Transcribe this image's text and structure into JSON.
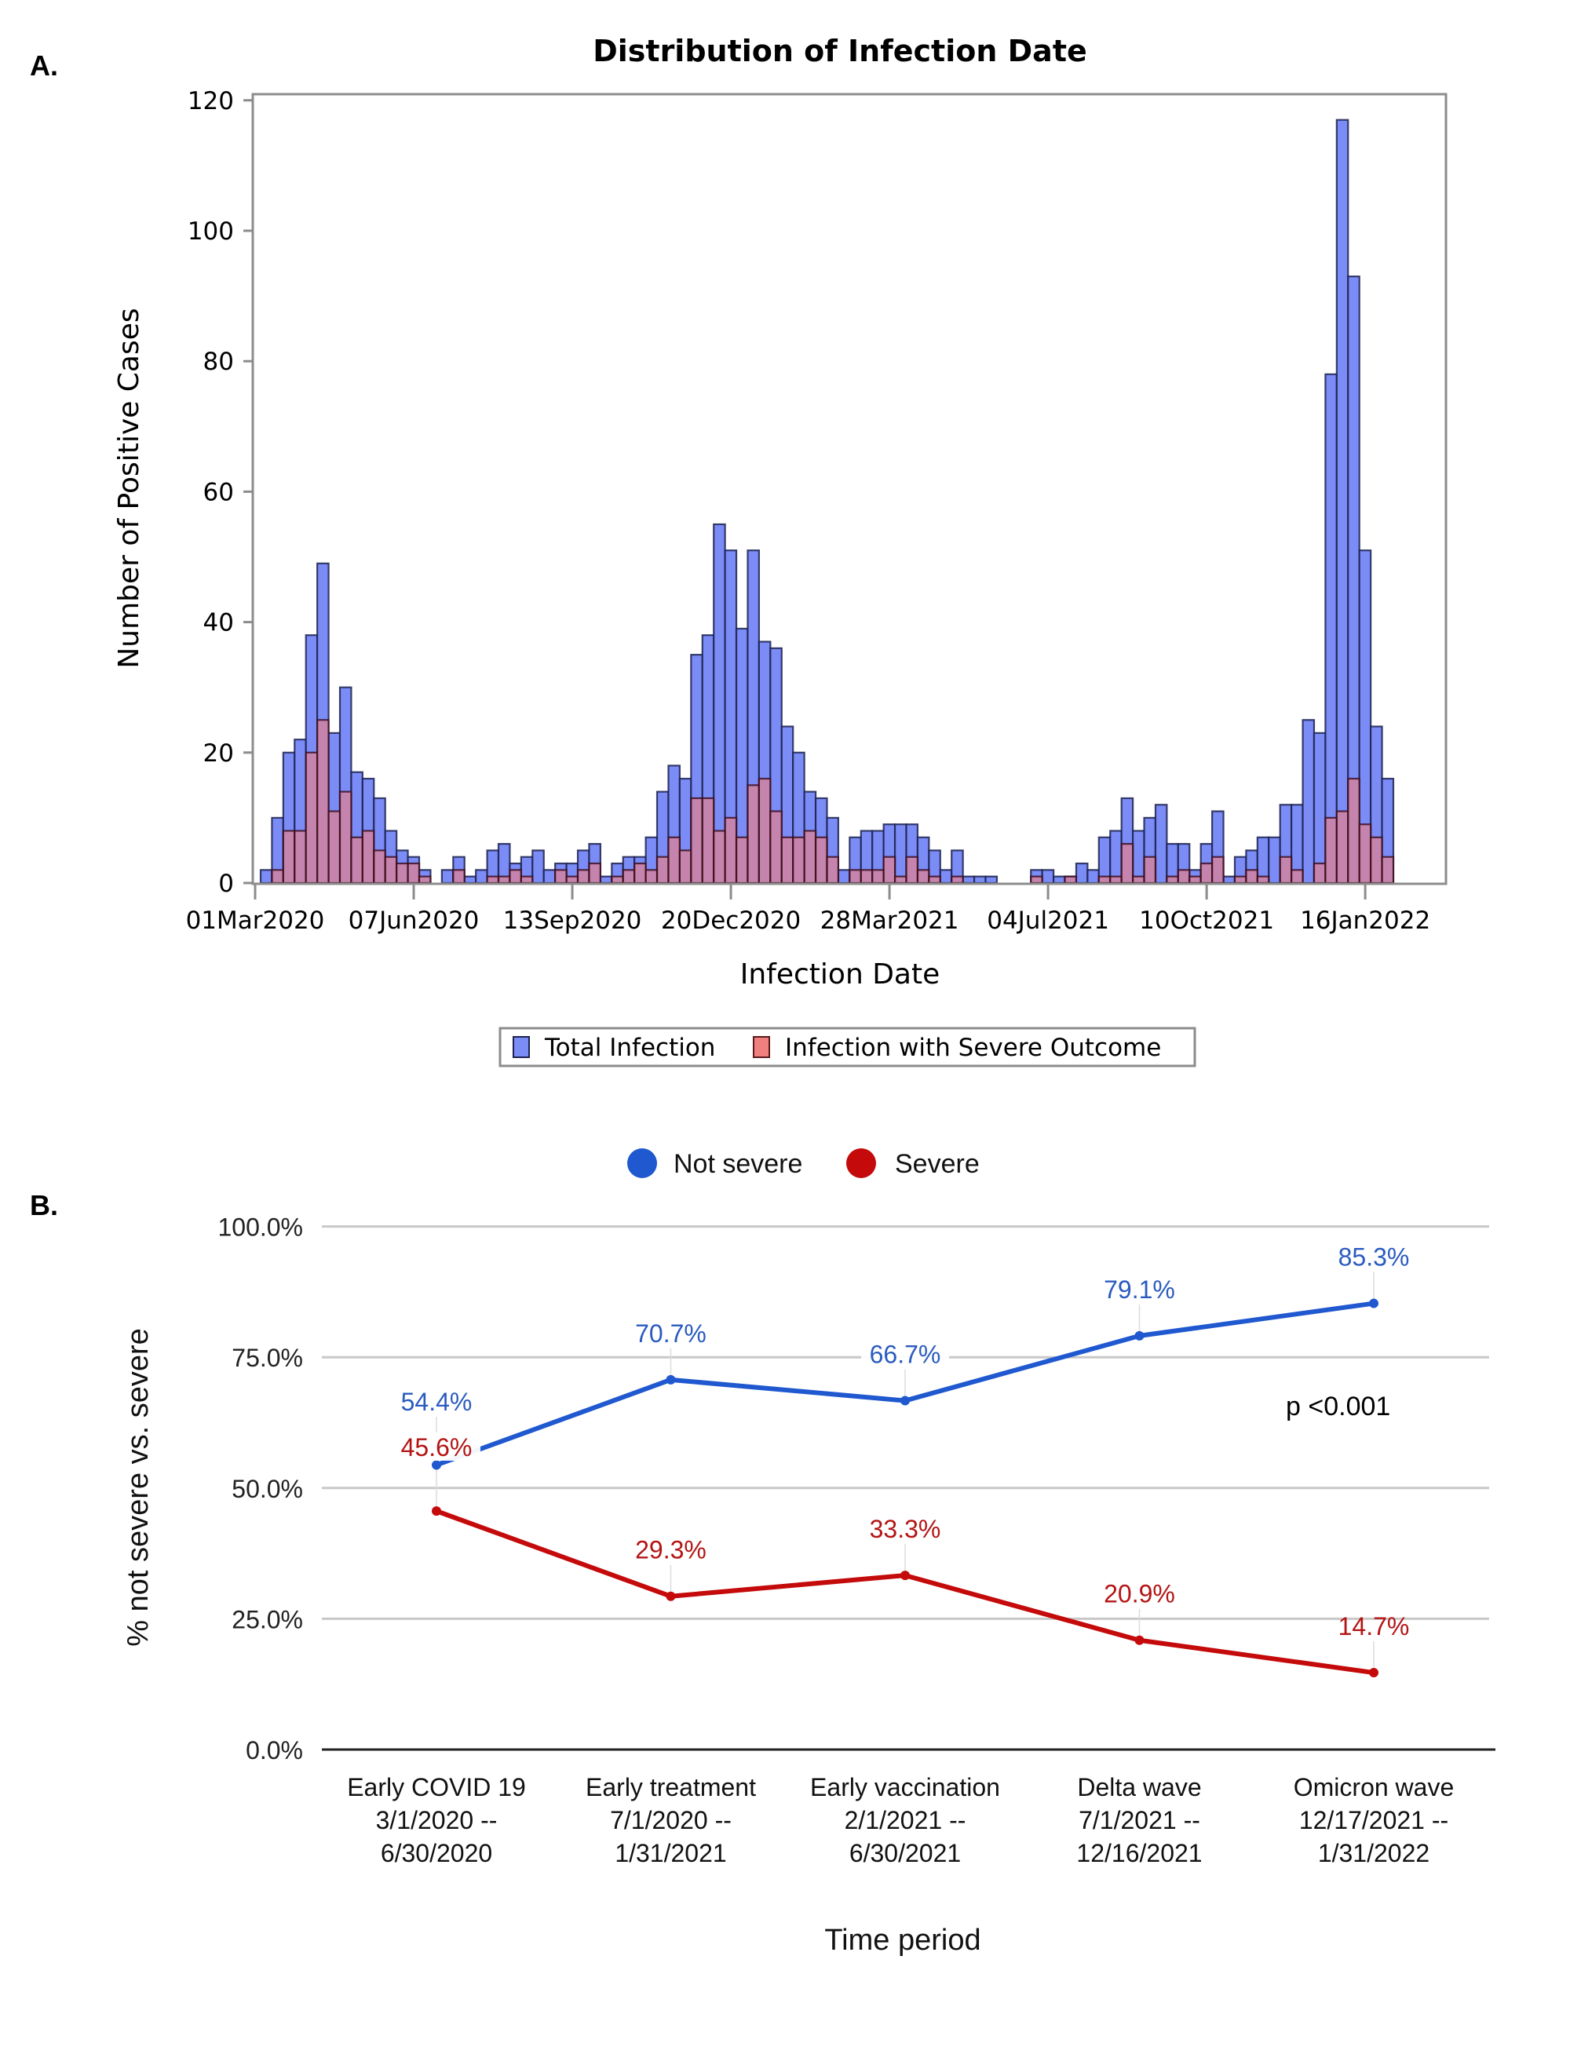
{
  "figure": {
    "panel_a_label": "A.",
    "panel_b_label": "B."
  },
  "colors": {
    "total_fill": "#7b8cf7",
    "severe_fill": "#f07f7f",
    "bar_outline": "#1c2250",
    "frame": "#8c8c8c",
    "not_severe": "#1f58cf",
    "severe": "#c40a0a",
    "not_severe_label": "#2a5bbf",
    "severe_label": "#b41414",
    "grid": "#c8c8c8"
  },
  "chart_data": [
    {
      "type": "bar",
      "subtype": "overlaid-histogram",
      "title": "Distribution of Infection Date",
      "xlabel": "Infection Date",
      "ylabel": "Number of Positive Cases",
      "bin": "week",
      "x_start": "01Mar2020",
      "ylim": [
        0,
        120
      ],
      "yticks": [
        0,
        20,
        40,
        60,
        80,
        100,
        120
      ],
      "xticks": [
        {
          "label": "01Mar2020",
          "week": 0
        },
        {
          "label": "07Jun2020",
          "week": 14
        },
        {
          "label": "13Sep2020",
          "week": 28
        },
        {
          "label": "20Dec2020",
          "week": 42
        },
        {
          "label": "28Mar2021",
          "week": 56
        },
        {
          "label": "04Jul2021",
          "week": 70
        },
        {
          "label": "10Oct2021",
          "week": 84
        },
        {
          "label": "16Jan2022",
          "week": 98
        }
      ],
      "legend_position": "bottom",
      "grid": false,
      "series": [
        {
          "name": "Total Infection",
          "values": [
            2,
            10,
            20,
            22,
            38,
            49,
            23,
            30,
            17,
            16,
            13,
            8,
            5,
            4,
            2,
            0,
            2,
            4,
            1,
            2,
            5,
            6,
            3,
            4,
            5,
            2,
            3,
            3,
            5,
            6,
            1,
            3,
            4,
            4,
            7,
            14,
            18,
            16,
            35,
            38,
            55,
            51,
            39,
            51,
            37,
            36,
            24,
            20,
            14,
            13,
            10,
            2,
            7,
            8,
            8,
            9,
            9,
            9,
            7,
            5,
            2,
            5,
            1,
            1,
            1,
            0,
            0,
            0,
            2,
            2,
            1,
            1,
            3,
            2,
            7,
            8,
            13,
            8,
            10,
            12,
            6,
            6,
            2,
            6,
            11,
            1,
            4,
            5,
            7,
            7,
            12,
            12,
            25,
            23,
            78,
            117,
            93,
            51,
            24,
            16
          ]
        },
        {
          "name": "Infection with Severe Outcome",
          "values": [
            0,
            2,
            8,
            8,
            20,
            25,
            11,
            14,
            7,
            8,
            5,
            4,
            3,
            3,
            1,
            0,
            0,
            2,
            0,
            0,
            1,
            1,
            2,
            1,
            0,
            0,
            2,
            1,
            2,
            3,
            0,
            1,
            2,
            3,
            2,
            4,
            7,
            5,
            13,
            13,
            8,
            10,
            7,
            15,
            16,
            11,
            7,
            7,
            8,
            7,
            4,
            0,
            2,
            2,
            2,
            4,
            1,
            4,
            2,
            1,
            0,
            1,
            0,
            0,
            0,
            0,
            0,
            0,
            1,
            0,
            0,
            1,
            0,
            0,
            1,
            1,
            6,
            1,
            4,
            0,
            1,
            2,
            1,
            3,
            4,
            0,
            1,
            2,
            1,
            0,
            4,
            2,
            0,
            3,
            10,
            11,
            16,
            9,
            7,
            4
          ]
        }
      ]
    },
    {
      "type": "line",
      "title": "",
      "xlabel": "Time period",
      "ylabel": "% not severe vs. severe",
      "ylim": [
        0,
        100
      ],
      "yticks": [
        "0.0%",
        "25.0%",
        "50.0%",
        "75.0%",
        "100.0%"
      ],
      "ytick_values": [
        0,
        25,
        50,
        75,
        100
      ],
      "grid": true,
      "legend_position": "top",
      "categories": [
        [
          "Early COVID 19",
          "3/1/2020 --",
          "6/30/2020"
        ],
        [
          "Early treatment",
          "7/1/2020 --",
          "1/31/2021"
        ],
        [
          "Early vaccination",
          "2/1/2021 --",
          "6/30/2021"
        ],
        [
          "Delta wave",
          "7/1/2021 --",
          "12/16/2021"
        ],
        [
          "Omicron wave",
          "12/17/2021 --",
          "1/31/2022"
        ]
      ],
      "series": [
        {
          "name": "Not severe",
          "values": [
            54.4,
            70.7,
            66.7,
            79.1,
            85.3
          ],
          "labels": [
            "54.4%",
            "70.7%",
            "66.7%",
            "79.1%",
            "85.3%"
          ]
        },
        {
          "name": "Severe",
          "values": [
            45.6,
            29.3,
            33.3,
            20.9,
            14.7
          ],
          "labels": [
            "45.6%",
            "29.3%",
            "33.3%",
            "20.9%",
            "14.7%"
          ]
        }
      ],
      "annotations": [
        "p <0.001"
      ]
    }
  ]
}
